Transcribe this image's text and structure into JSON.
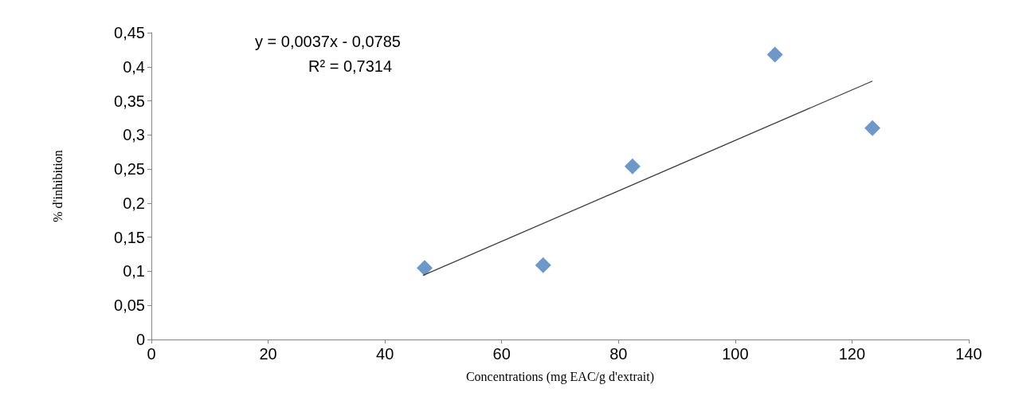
{
  "chart_data": {
    "type": "scatter",
    "xlabel": "Concentrations (mg EAC/g d'extrait)",
    "ylabel": "% d'inhibition",
    "annotations": [
      "y = 0,0037x - 0,0785",
      "R² = 0,7314"
    ],
    "series": [
      {
        "type": "scatter",
        "color": "#4a7ebb",
        "marker": "diamond",
        "x": [
          46.8,
          67.1,
          82.4,
          106.8,
          123.5
        ],
        "values": [
          0.105,
          0.109,
          0.254,
          0.418,
          0.31
        ]
      },
      {
        "type": "line",
        "color": "#404040",
        "marker": "none",
        "x": [
          46.5,
          123.5
        ],
        "values": [
          0.094,
          0.379
        ]
      }
    ],
    "xlim": [
      0,
      140
    ],
    "xticks": [
      0,
      20,
      40,
      60,
      80,
      100,
      120,
      140
    ],
    "ylim": [
      0,
      0.45
    ],
    "yticks": [
      0,
      {
        "value": 0.05,
        "label": "0,05"
      },
      {
        "value": 0.1,
        "label": "0,1"
      },
      {
        "value": 0.15,
        "label": "0,15"
      },
      {
        "value": 0.2,
        "label": "0,2"
      },
      {
        "value": 0.25,
        "label": "0,25"
      },
      {
        "value": 0.3,
        "label": "0,3"
      },
      {
        "value": 0.35,
        "label": "0,35"
      },
      {
        "value": 0.4,
        "label": "0,4"
      },
      {
        "value": 0.45,
        "label": "0,45"
      }
    ],
    "grid": false
  }
}
